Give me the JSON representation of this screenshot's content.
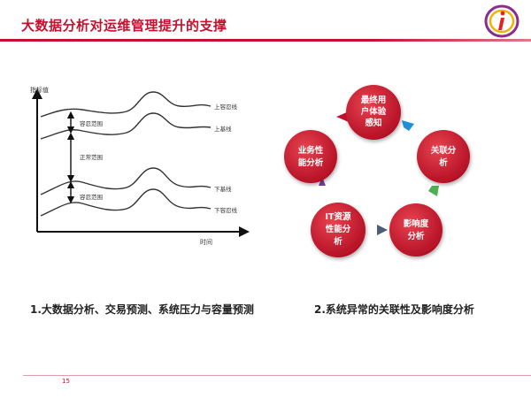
{
  "slide": {
    "title": "大数据分析对运维管理提升的支撑",
    "page_number": "15"
  },
  "colors": {
    "accent": "#c8102e",
    "node_fill": "#c8102e",
    "arrow_blue": "#1e8fd8",
    "arrow_green": "#4caf50",
    "arrow_slate": "#4a5d78",
    "arrow_purple": "#7b3fa0"
  },
  "left_chart": {
    "y_axis_label": "指标值",
    "x_axis_label": "时间",
    "line_labels": {
      "upper_tolerance": "上容忍线",
      "upper_baseline": "上基线",
      "lower_baseline": "下基线",
      "lower_tolerance": "下容忍线"
    },
    "band_labels": {
      "upper_tolerance_range": "容忍范围",
      "normal_range": "正常范围",
      "lower_tolerance_range": "容忍范围"
    }
  },
  "cycle": {
    "nodes": [
      {
        "lines": [
          "最终用",
          "户体验",
          "感知"
        ]
      },
      {
        "lines": [
          "关联分",
          "析"
        ]
      },
      {
        "lines": [
          "影响度",
          "分析"
        ]
      },
      {
        "lines": [
          "IT资源",
          "性能分",
          "析"
        ]
      },
      {
        "lines": [
          "业务性",
          "能分析"
        ]
      }
    ]
  },
  "captions": {
    "left": "1.大数据分析、交易预测、系统压力与容量预测",
    "right": "2.系统异常的关联性及影响度分析"
  }
}
